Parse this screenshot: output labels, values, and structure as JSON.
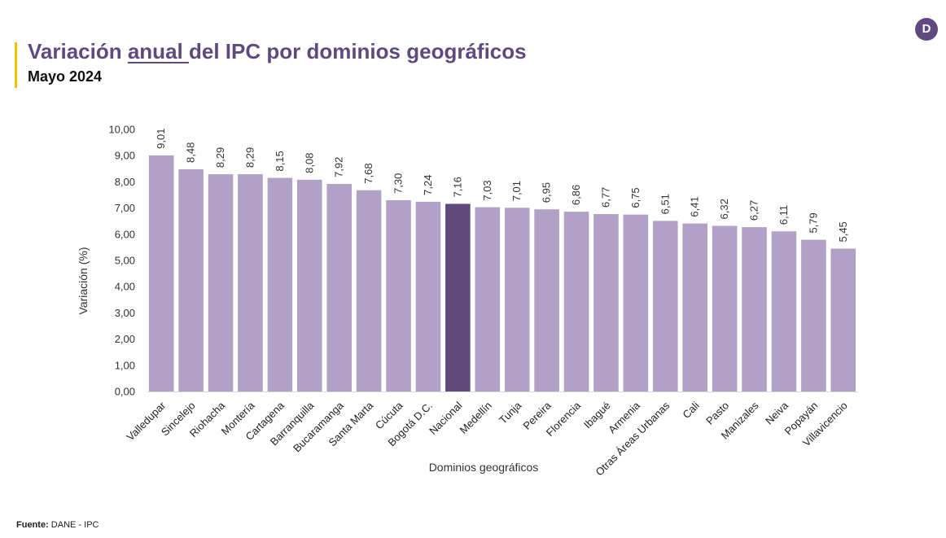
{
  "header": {
    "title_part1": "Variación ",
    "title_underlined": "anual ",
    "title_part2": "del IPC por dominios geográficos",
    "subtitle": "Mayo 2024"
  },
  "logo": {
    "letter": "D",
    "icon": "dane-logo-icon"
  },
  "footer": {
    "label": "Fuente:",
    "text": "DANE - IPC"
  },
  "colors": {
    "bar": "#b2a1c7",
    "highlight": "#604a7b",
    "title": "#5e4a7e",
    "accent": "#f2c200"
  },
  "chart_data": {
    "type": "bar",
    "title": "Variación anual del IPC por dominios geográficos",
    "subtitle": "Mayo 2024",
    "xlabel": "Dominios geográficos",
    "ylabel": "Variación (%)",
    "ylim": [
      0,
      10
    ],
    "yticks": [
      "0,00",
      "1,00",
      "2,00",
      "3,00",
      "4,00",
      "5,00",
      "6,00",
      "7,00",
      "8,00",
      "9,00",
      "10,00"
    ],
    "categories": [
      "Valledupar",
      "Sincelejo",
      "Riohacha",
      "Montería",
      "Cartagena",
      "Barranquilla",
      "Bucaramanga",
      "Santa Marta",
      "Cúcuta",
      "Bogotá D.C.",
      "Nacional",
      "Medellín",
      "Tunja",
      "Pereira",
      "Florencia",
      "Ibagué",
      "Armenia",
      "Otras Áreas Urbanas",
      "Cali",
      "Pasto",
      "Manizales",
      "Neiva",
      "Popayán",
      "Villavicencio"
    ],
    "values": [
      9.01,
      8.48,
      8.29,
      8.29,
      8.15,
      8.08,
      7.92,
      7.68,
      7.3,
      7.24,
      7.16,
      7.03,
      7.01,
      6.95,
      6.86,
      6.77,
      6.75,
      6.51,
      6.41,
      6.32,
      6.27,
      6.11,
      5.79,
      5.45
    ],
    "value_labels": [
      "9,01",
      "8,48",
      "8,29",
      "8,29",
      "8,15",
      "8,08",
      "7,92",
      "7,68",
      "7,30",
      "7,24",
      "7,16",
      "7,03",
      "7,01",
      "6,95",
      "6,86",
      "6,77",
      "6,75",
      "6,51",
      "6,41",
      "6,32",
      "6,27",
      "6,11",
      "5,79",
      "5,45"
    ],
    "highlight_category": "Nacional",
    "grid": false,
    "legend": "none"
  }
}
